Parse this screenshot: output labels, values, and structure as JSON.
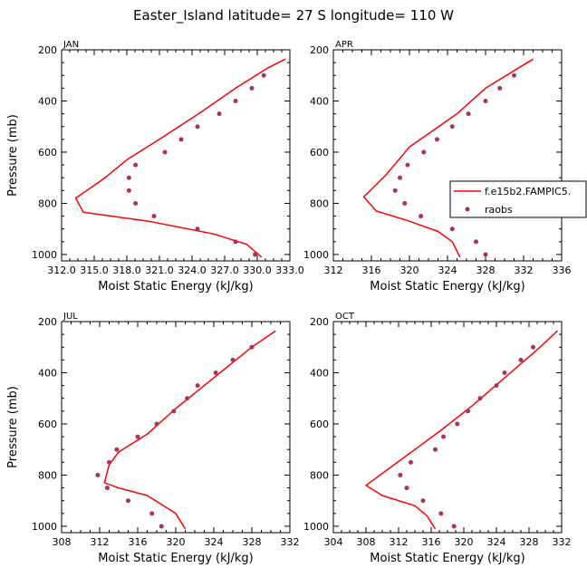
{
  "figure": {
    "title": "Easter_Island  latitude= 27 S longitude= 110 W"
  },
  "legend": {
    "model_label": "f.e15b2.FAMPIC5.",
    "obs_label": "raobs"
  },
  "colors": {
    "model": "#ff0000",
    "obs": "#a8345c",
    "axis": "#000000"
  },
  "chart_data": [
    {
      "type": "line",
      "panel": "JAN",
      "xlabel": "Moist Static Energy (kJ/kg)",
      "ylabel": "Pressure (mb)",
      "xlim": [
        312.0,
        333.0
      ],
      "xticks": [
        312.0,
        315.0,
        318.0,
        321.0,
        324.0,
        327.0,
        330.0,
        333.0
      ],
      "xtick_labels": [
        "312.0",
        "315.0",
        "318.0",
        "321.0",
        "324.0",
        "327.0",
        "330.0",
        "333.0"
      ],
      "ylim": [
        1025,
        200
      ],
      "yticks": [
        200,
        400,
        600,
        800,
        1000
      ],
      "ytick_labels": [
        "200",
        "400",
        "600",
        "800",
        "1000"
      ],
      "series": [
        {
          "name": "f.e15b2.FAMPIC5.",
          "kind": "line",
          "points": [
            [
              332.6,
              236
            ],
            [
              331.0,
              270
            ],
            [
              328.0,
              350
            ],
            [
              324.6,
              450
            ],
            [
              321.0,
              550
            ],
            [
              318.0,
              630
            ],
            [
              316.0,
              700
            ],
            [
              313.3,
              780
            ],
            [
              314.0,
              835
            ],
            [
              320.0,
              870
            ],
            [
              326.0,
              920
            ],
            [
              329.0,
              960
            ],
            [
              330.4,
              1010
            ]
          ]
        },
        {
          "name": "raobs",
          "kind": "points",
          "points": [
            [
              330.6,
              300
            ],
            [
              329.5,
              350
            ],
            [
              328.0,
              400
            ],
            [
              326.5,
              450
            ],
            [
              324.5,
              500
            ],
            [
              323.0,
              550
            ],
            [
              321.5,
              600
            ],
            [
              318.8,
              650
            ],
            [
              318.2,
              700
            ],
            [
              318.2,
              750
            ],
            [
              318.8,
              800
            ],
            [
              320.5,
              850
            ],
            [
              324.5,
              900
            ],
            [
              328.0,
              950
            ],
            [
              329.8,
              1000
            ]
          ]
        }
      ]
    },
    {
      "type": "line",
      "panel": "APR",
      "xlabel": "Moist Static Energy (kJ/kg)",
      "ylabel": "Pressure (mb)",
      "xlim": [
        312,
        336
      ],
      "xticks": [
        312,
        316,
        320,
        324,
        328,
        332,
        336
      ],
      "xtick_labels": [
        "312",
        "316",
        "320",
        "324",
        "328",
        "332",
        "336"
      ],
      "ylim": [
        1025,
        200
      ],
      "yticks": [
        200,
        400,
        600,
        800,
        1000
      ],
      "ytick_labels": [
        "200",
        "400",
        "600",
        "800",
        "1000"
      ],
      "series": [
        {
          "name": "f.e15b2.FAMPIC5.",
          "kind": "line",
          "points": [
            [
              333.0,
              236
            ],
            [
              331.5,
              270
            ],
            [
              328.0,
              350
            ],
            [
              325.0,
              450
            ],
            [
              320.0,
              580
            ],
            [
              317.5,
              690
            ],
            [
              315.2,
              775
            ],
            [
              316.5,
              830
            ],
            [
              320.0,
              870
            ],
            [
              323.0,
              910
            ],
            [
              324.5,
              950
            ],
            [
              325.3,
              1010
            ]
          ]
        },
        {
          "name": "raobs",
          "kind": "points",
          "points": [
            [
              331.0,
              300
            ],
            [
              329.5,
              350
            ],
            [
              328.0,
              400
            ],
            [
              326.2,
              450
            ],
            [
              324.5,
              500
            ],
            [
              322.9,
              550
            ],
            [
              321.5,
              600
            ],
            [
              319.8,
              650
            ],
            [
              319.0,
              700
            ],
            [
              318.5,
              750
            ],
            [
              319.5,
              800
            ],
            [
              321.2,
              850
            ],
            [
              324.5,
              900
            ],
            [
              327.0,
              950
            ],
            [
              328.0,
              1000
            ]
          ]
        }
      ]
    },
    {
      "type": "line",
      "panel": "JUL",
      "xlabel": "Moist Static Energy (kJ/kg)",
      "ylabel": "Pressure (mb)",
      "xlim": [
        308,
        332
      ],
      "xticks": [
        308,
        312,
        316,
        320,
        324,
        328,
        332
      ],
      "xtick_labels": [
        "308",
        "312",
        "316",
        "320",
        "324",
        "328",
        "332"
      ],
      "ylim": [
        1025,
        200
      ],
      "yticks": [
        200,
        400,
        600,
        800,
        1000
      ],
      "ytick_labels": [
        "200",
        "400",
        "600",
        "800",
        "1000"
      ],
      "series": [
        {
          "name": "f.e15b2.FAMPIC5.",
          "kind": "line",
          "points": [
            [
              330.5,
              236
            ],
            [
              328.0,
              300
            ],
            [
              324.0,
              420
            ],
            [
              320.0,
              540
            ],
            [
              317.0,
              640
            ],
            [
              314.0,
              710
            ],
            [
              313.0,
              760
            ],
            [
              312.5,
              830
            ],
            [
              314.0,
              850
            ],
            [
              317.0,
              880
            ],
            [
              320.0,
              950
            ],
            [
              321.0,
              1010
            ]
          ]
        },
        {
          "name": "raobs",
          "kind": "points",
          "points": [
            [
              328.0,
              300
            ],
            [
              326.0,
              350
            ],
            [
              324.2,
              400
            ],
            [
              322.3,
              450
            ],
            [
              321.2,
              500
            ],
            [
              319.8,
              550
            ],
            [
              318.0,
              600
            ],
            [
              316.0,
              650
            ],
            [
              313.8,
              700
            ],
            [
              313.0,
              750
            ],
            [
              311.8,
              800
            ],
            [
              312.8,
              850
            ],
            [
              315.0,
              900
            ],
            [
              317.5,
              950
            ],
            [
              318.5,
              1000
            ]
          ]
        }
      ]
    },
    {
      "type": "line",
      "panel": "OCT",
      "xlabel": "Moist Static Energy (kJ/kg)",
      "ylabel": "Pressure (mb)",
      "xlim": [
        304,
        332
      ],
      "xticks": [
        304,
        308,
        312,
        316,
        320,
        324,
        328,
        332
      ],
      "xtick_labels": [
        "304",
        "308",
        "312",
        "316",
        "320",
        "324",
        "328",
        "332"
      ],
      "ylim": [
        1025,
        200
      ],
      "yticks": [
        200,
        400,
        600,
        800,
        1000
      ],
      "ytick_labels": [
        "200",
        "400",
        "600",
        "800",
        "1000"
      ],
      "series": [
        {
          "name": "f.e15b2.FAMPIC5.",
          "kind": "line",
          "points": [
            [
              331.5,
              236
            ],
            [
              329.0,
              310
            ],
            [
              325.0,
              420
            ],
            [
              321.0,
              530
            ],
            [
              317.0,
              630
            ],
            [
              314.0,
              700
            ],
            [
              311.0,
              770
            ],
            [
              308.0,
              840
            ],
            [
              310.0,
              880
            ],
            [
              314.0,
              920
            ],
            [
              315.5,
              960
            ],
            [
              316.5,
              1010
            ]
          ]
        },
        {
          "name": "raobs",
          "kind": "points",
          "points": [
            [
              328.5,
              300
            ],
            [
              327.0,
              350
            ],
            [
              325.0,
              400
            ],
            [
              324.0,
              450
            ],
            [
              322.0,
              500
            ],
            [
              320.5,
              550
            ],
            [
              319.2,
              600
            ],
            [
              317.5,
              650
            ],
            [
              316.5,
              700
            ],
            [
              313.5,
              750
            ],
            [
              312.2,
              800
            ],
            [
              313.0,
              850
            ],
            [
              315.0,
              900
            ],
            [
              317.2,
              950
            ],
            [
              318.8,
              1000
            ]
          ]
        }
      ]
    }
  ]
}
